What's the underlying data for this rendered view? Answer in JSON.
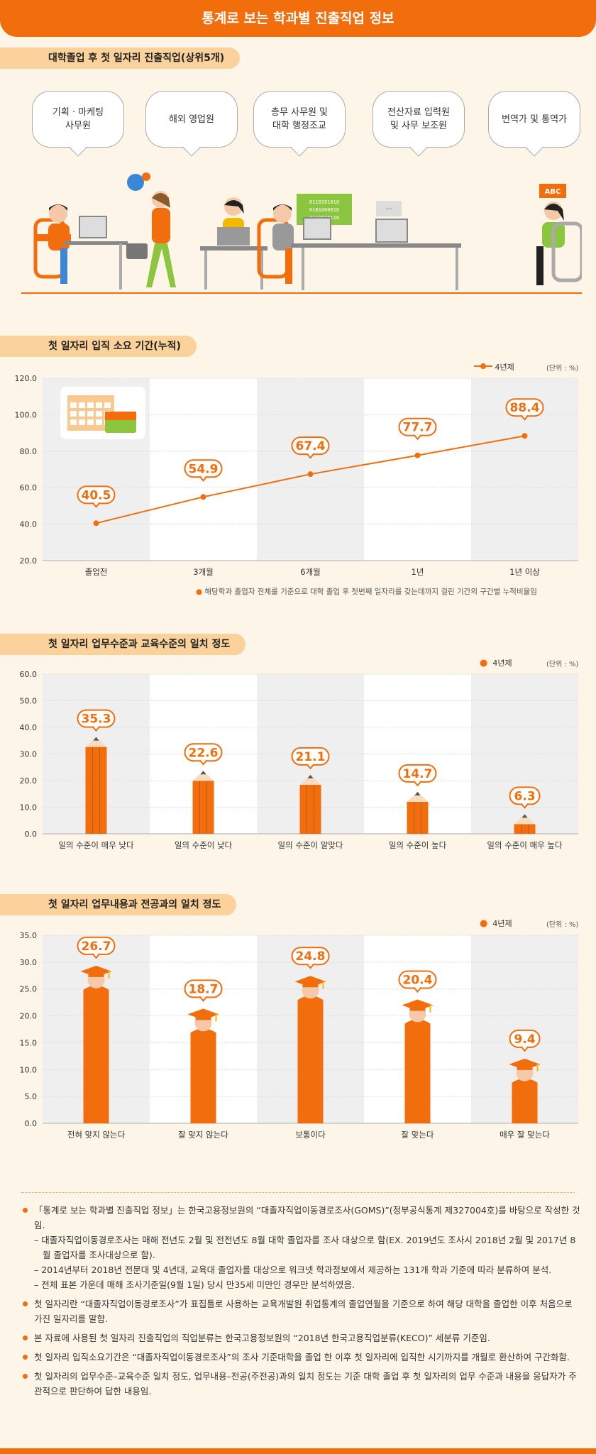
{
  "header": {
    "title": "통계로 보는 학과별 진출직업 정보"
  },
  "section1": {
    "title": "대학졸업 후 첫 일자리 진출직업(상위5개)",
    "jobs": [
      "기획 · 마케팅\n사무원",
      "해외 영업원",
      "총무 사무원 및\n대학 행정조교",
      "전산자료 입력원\n및 사무 보조원",
      "번역가 및 통역가"
    ],
    "screen_text": "0110101010\n0101000010\n1110010110",
    "abc_text": "ABC"
  },
  "colors": {
    "accent": "#f26d0c",
    "pill": "#fbd29b",
    "background": "#fdf5e7",
    "band": "#efefef"
  },
  "legend_label": "4년제",
  "unit_label": "(단위 : %)",
  "chart_data": [
    {
      "type": "line",
      "title": "첫 일자리 입직 소요 기간(누적)",
      "categories": [
        "졸업전",
        "3개월",
        "6개월",
        "1년",
        "1년 이상"
      ],
      "series": [
        {
          "name": "4년제",
          "values": [
            40.5,
            54.9,
            67.4,
            77.7,
            88.4
          ]
        }
      ],
      "ylim": [
        20,
        120
      ],
      "yticks": [
        "20.0",
        "40.0",
        "60.0",
        "80.0",
        "100.0",
        "120.0"
      ],
      "footnote": "해당학과 졸업자 전체를 기준으로 대학 졸업 후 첫번째 일자리를 갖는데까지 걸린 기간의 구간별 누적비율임",
      "icon": "calendar-briefcase-icon"
    },
    {
      "type": "bar",
      "title": "첫 일자리 업무수준과 교육수준의 일치 정도",
      "categories": [
        "일의 수준이 매우 낮다",
        "일의 수준이 낮다",
        "일의 수준이 알맞다",
        "일의 수준이 높다",
        "일의 수준이 매우 높다"
      ],
      "series": [
        {
          "name": "4년제",
          "values": [
            35.3,
            22.6,
            21.1,
            14.7,
            6.3
          ]
        }
      ],
      "ylim": [
        0,
        60
      ],
      "yticks": [
        "0.0",
        "10.0",
        "20.0",
        "30.0",
        "40.0",
        "50.0",
        "60.0"
      ],
      "bar_style": "pencil-icon"
    },
    {
      "type": "bar",
      "title": "첫 일자리 업무내용과 전공과의 일치 정도",
      "categories": [
        "전혀 맞지 않는다",
        "잘 맞지 않는다",
        "보통이다",
        "잘 맞는다",
        "매우 잘 맞는다"
      ],
      "series": [
        {
          "name": "4년제",
          "values": [
            26.7,
            18.7,
            24.8,
            20.4,
            9.4
          ]
        }
      ],
      "ylim": [
        0,
        35
      ],
      "yticks": [
        "0.0",
        "5.0",
        "10.0",
        "15.0",
        "20.0",
        "25.0",
        "30.0",
        "35.0"
      ],
      "bar_style": "graduate-icon"
    }
  ],
  "notes": [
    {
      "text": "「통계로 보는 학과별 진출직업 정보」는 한국고용정보원의 “대졸자직업이동경로조사(GOMS)”(정부공식통계 제327004호)를 바탕으로 작성한 것임.",
      "subs": [
        "– 대졸자직업이동경로조사는 매해 전년도 2월 및 전전년도 8월 대학 졸업자를 조사 대상으로 함(EX. 2019년도 조사시 2018년 2월 및 2017년 8월 졸업자를 조사대상으로 함).",
        "– 2014년부터 2018년 전문대 및 4년대, 교육대 졸업자를 대상으로 워크넷 학과정보에서 제공하는 131개 학과 기준에 따라 분류하여 분석.",
        "– 전체 표본 가운데 매해 조사기준일(9월 1일) 당시 만35세 미만인 경우만 분석하였음."
      ]
    },
    {
      "text": "첫 일자리란 “대졸자직업이동경로조사”가 표집틀로 사용하는 교육개발원 취업통계의 졸업연월을 기준으로 하여 해당 대학을 졸업한 이후 처음으로 가진 일자리를 말함.",
      "subs": []
    },
    {
      "text": "본 자료에 사용된 첫 일자리 진출직업의 직업분류는 한국고용정보원의 “2018년 한국고용직업분류(KECO)” 세분류 기준임.",
      "subs": []
    },
    {
      "text": "첫 일자리 입직소요기간은 “대졸자직업이동경로조사”의 조사 기준대학을 졸업 한 이후 첫 일자리에 입직한 시기까지를 개월로 환산하여 구간화함.",
      "subs": []
    },
    {
      "text": "첫 일자리의 업무수준–교육수준 일치 정도, 업무내용–전공(주전공)과의 일치 정도는 기준 대학 졸업 후 첫 일자리의 업무 수준과 내용을 응답자가 주관적으로 판단하여 답한 내용임.",
      "subs": []
    }
  ]
}
